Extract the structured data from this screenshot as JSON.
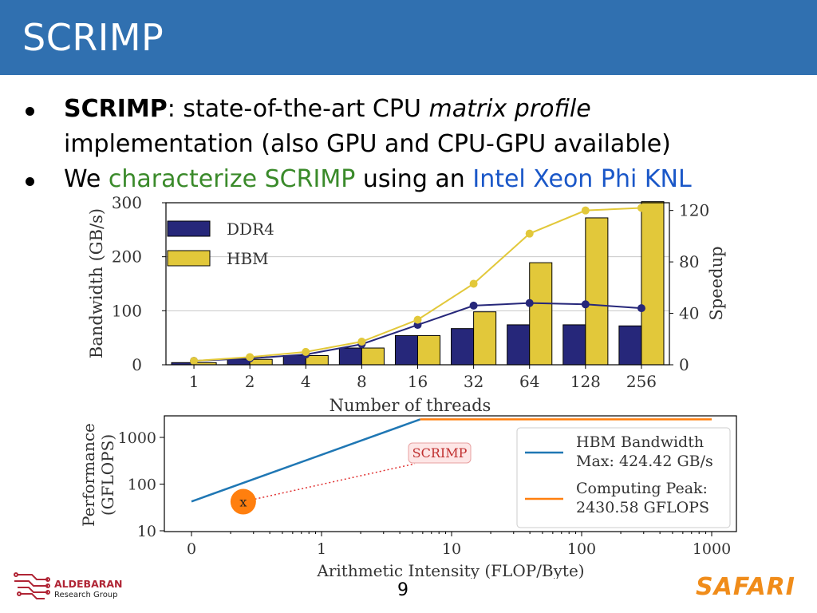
{
  "header": {
    "title": "SCRIMP",
    "bg_color": "#3070b0"
  },
  "bullets": [
    {
      "bold": "SCRIMP",
      "text1": ": state-of-the-art CPU ",
      "italic": "matrix profile",
      "text2": "implementation (also GPU and CPU-GPU available)"
    },
    {
      "text1": "We ",
      "green": "characterize SCRIMP",
      "text2": " using an ",
      "blue": "Intel Xeon Phi KNL"
    }
  ],
  "chart_data": [
    {
      "type": "bar",
      "xlabel": "Number of threads",
      "ylabel": "Bandwidth (GB/s)",
      "y2label": "Speedup",
      "categories": [
        "1",
        "2",
        "4",
        "8",
        "16",
        "32",
        "64",
        "128",
        "256"
      ],
      "ylim": [
        0,
        300
      ],
      "y2lim": [
        0,
        126
      ],
      "yticks": [
        "0",
        "100",
        "200",
        "300"
      ],
      "y2ticks": [
        "0",
        "40",
        "80",
        "120"
      ],
      "legend_position": "top-left",
      "grid": true,
      "series": [
        {
          "name": "DDR4",
          "kind": "bar",
          "color": "#26277a",
          "values": [
            4,
            10,
            17,
            31,
            54,
            67,
            74,
            74,
            72
          ]
        },
        {
          "name": "HBM",
          "kind": "bar",
          "color": "#e2c83a",
          "values": [
            4,
            10,
            17,
            31,
            54,
            98,
            189,
            272,
            302
          ]
        },
        {
          "kind": "line",
          "axis": "y2",
          "color": "#26277a",
          "values": [
            3,
            5,
            8,
            16,
            31,
            46,
            48,
            47,
            44
          ]
        },
        {
          "kind": "line",
          "axis": "y2",
          "color": "#e2c83a",
          "values": [
            3,
            6,
            10,
            18,
            35,
            63,
            102,
            120,
            122
          ]
        }
      ]
    },
    {
      "type": "line",
      "scale": "log",
      "xlabel": "Arithmetic Intensity (FLOP/Byte)",
      "ylabel_line1": "Performance",
      "ylabel_line2": "(GFLOPS)",
      "xticks": [
        "0",
        "1",
        "10",
        "100",
        "1000"
      ],
      "yticks": [
        "10",
        "100",
        "1000"
      ],
      "legend_position": "right",
      "series": [
        {
          "name_line1": "HBM Bandwidth",
          "name_line2": "Max: 424.42 GB/s",
          "color": "#1f77b4",
          "x": [
            0.1,
            5.73
          ],
          "y": [
            42.44,
            2430.58
          ]
        },
        {
          "name_line1": "Computing Peak:",
          "name_line2": "2430.58 GFLOPS",
          "color": "#ff7f0e",
          "x": [
            5.73,
            1000
          ],
          "y": [
            2430.58,
            2430.58
          ]
        }
      ],
      "point": {
        "label": "x",
        "x": 0.25,
        "y": 42
      },
      "annotation": "SCRIMP"
    }
  ],
  "footer": {
    "page_number": "9",
    "left_logo_name": "ALDEBARAN",
    "left_logo_sub": "Research Group",
    "right_logo": "SAFARI"
  }
}
